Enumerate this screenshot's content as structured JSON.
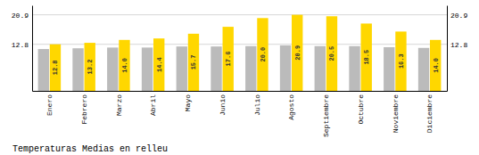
{
  "chart_data": {
    "type": "bar",
    "title": "Temperaturas Medias en relleu",
    "categories": [
      "Enero",
      "Febrero",
      "Marzo",
      "Abril",
      "Mayo",
      "Junio",
      "Julio",
      "Agosto",
      "Septiembre",
      "Octubre",
      "Noviembre",
      "Diciembre"
    ],
    "series": [
      {
        "color": "#BBBBBB",
        "values": [
          11.5,
          11.7,
          11.9,
          11.9,
          12.2,
          12.2,
          12.3,
          12.5,
          12.3,
          12.3,
          12.0,
          11.8
        ]
      },
      {
        "color": "#FFD700",
        "values": [
          12.8,
          13.2,
          14.0,
          14.4,
          15.7,
          17.6,
          20.0,
          20.9,
          20.5,
          18.5,
          16.3,
          14.0
        ],
        "data_labels": true,
        "value_labels": [
          "12.8",
          "13.2",
          "14.0",
          "14.4",
          "15.7",
          "17.6",
          "20.0",
          "20.9",
          "20.5",
          "18.5",
          "16.3",
          "14.0"
        ]
      }
    ],
    "ylim": [
      0,
      23.5
    ],
    "yticks": [
      12.8,
      20.9
    ],
    "grid": true
  }
}
